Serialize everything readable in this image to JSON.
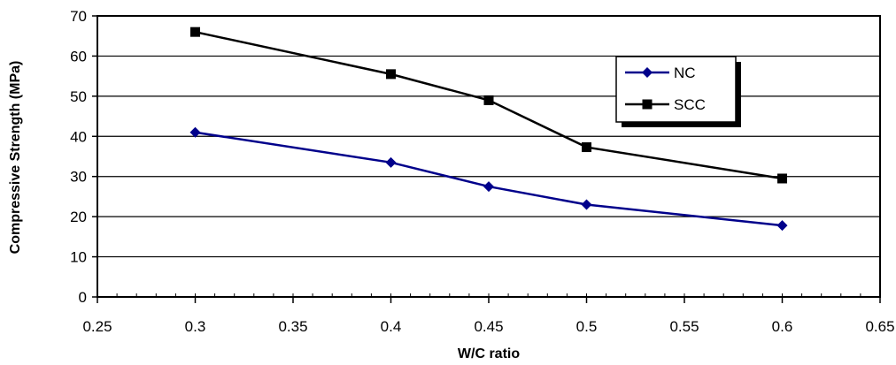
{
  "chart_data": {
    "type": "line",
    "title": "",
    "xlabel": "W/C ratio",
    "ylabel": "Compressive Strength (MPa)",
    "xlim": [
      0.25,
      0.65
    ],
    "ylim": [
      0,
      70
    ],
    "x_ticks": [
      "0.25",
      "0.3",
      "0.35",
      "0.4",
      "0.45",
      "0.5",
      "0.55",
      "0.6",
      "0.65"
    ],
    "y_ticks": [
      "0",
      "10",
      "20",
      "30",
      "40",
      "50",
      "60",
      "70"
    ],
    "grid": "horizontal",
    "legend_position": "top-right",
    "series": [
      {
        "name": "NC",
        "color": "#00008B",
        "marker": "diamond",
        "x": [
          0.3,
          0.4,
          0.45,
          0.5,
          0.6
        ],
        "y": [
          41,
          33.5,
          27.5,
          23,
          17.8
        ]
      },
      {
        "name": "SCC",
        "color": "#000000",
        "marker": "square",
        "x": [
          0.3,
          0.4,
          0.45,
          0.5,
          0.6
        ],
        "y": [
          66,
          55.5,
          49,
          37.3,
          29.5
        ]
      }
    ]
  }
}
